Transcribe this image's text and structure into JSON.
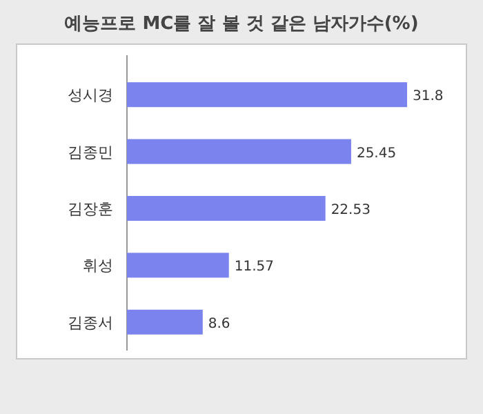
{
  "chart_data": {
    "type": "bar",
    "orientation": "horizontal",
    "title": "예능프로 MC를 잘 볼 것 같은 남자가수(%)",
    "categories": [
      "성시경",
      "김종민",
      "김장훈",
      "휘성",
      "김종서"
    ],
    "values": [
      31.8,
      25.45,
      22.53,
      11.57,
      8.6
    ],
    "color": "#7b84ee",
    "data_labels": true
  }
}
